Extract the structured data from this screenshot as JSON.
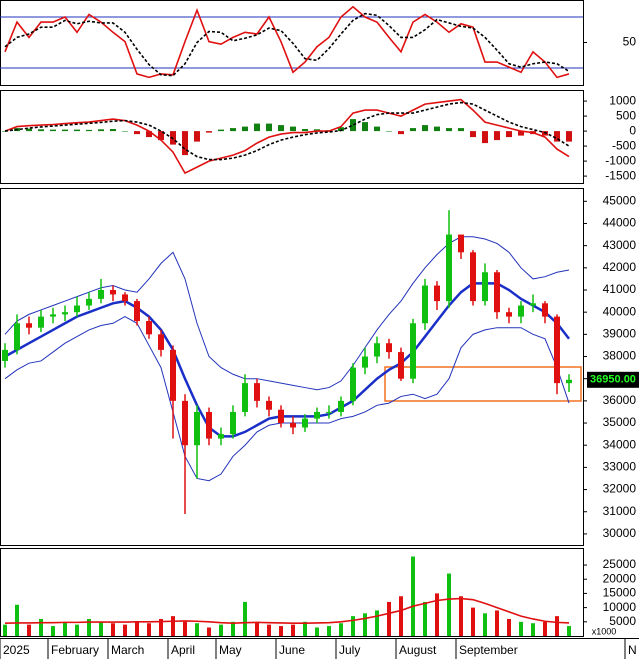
{
  "chart_data": [
    {
      "type": "line",
      "ylim": [
        0,
        100
      ],
      "yticks": [
        50
      ],
      "levels": [
        80,
        20
      ],
      "level_color": "#2233bb",
      "series": [
        {
          "name": "%K",
          "color": "#e01010",
          "values": [
            39,
            74,
            56,
            74,
            74,
            80,
            62,
            83,
            74,
            62,
            51,
            13,
            9,
            13,
            12,
            51,
            88,
            51,
            48,
            56,
            62,
            60,
            80,
            51,
            15,
            27,
            45,
            56,
            80,
            92,
            80,
            74,
            56,
            39,
            74,
            83,
            74,
            62,
            72,
            68,
            27,
            27,
            21,
            15,
            39,
            27,
            9,
            13
          ]
        },
        {
          "name": "%D",
          "color": "#000000",
          "dashed": true,
          "values": [
            45,
            56,
            60,
            68,
            68,
            76,
            72,
            75,
            73,
            73,
            62,
            42,
            24,
            12,
            11,
            25,
            50,
            63,
            62,
            52,
            55,
            59,
            67,
            64,
            49,
            31,
            29,
            43,
            60,
            76,
            84,
            82,
            70,
            56,
            56,
            65,
            77,
            73,
            69,
            67,
            56,
            41,
            25,
            21,
            25,
            27,
            25,
            16
          ]
        }
      ]
    },
    {
      "type": "macd",
      "ylim": [
        -1730,
        1370
      ],
      "yticks": [
        1000,
        500,
        0,
        -500,
        -1000,
        -1500
      ],
      "up_color": "#108010",
      "down_color": "#d01010",
      "histogram": [
        0,
        100,
        80,
        60,
        50,
        50,
        50,
        40,
        60,
        70,
        0,
        -100,
        -200,
        -300,
        -450,
        -800,
        -350,
        -50,
        50,
        100,
        150,
        250,
        250,
        200,
        150,
        70,
        60,
        30,
        130,
        400,
        300,
        150,
        0,
        -100,
        100,
        200,
        150,
        100,
        100,
        -200,
        -400,
        -300,
        -200,
        -150,
        -100,
        -150,
        -350,
        -350
      ],
      "series": [
        {
          "name": "MACD",
          "color": "#e01010",
          "values": [
            0,
            150,
            180,
            200,
            220,
            250,
            280,
            300,
            350,
            400,
            350,
            200,
            0,
            -300,
            -700,
            -1400,
            -1200,
            -1000,
            -900,
            -800,
            -650,
            -400,
            -200,
            -100,
            -50,
            -50,
            0,
            0,
            150,
            600,
            700,
            700,
            600,
            500,
            700,
            900,
            950,
            1000,
            1050,
            700,
            300,
            200,
            100,
            0,
            -50,
            -200,
            -600,
            -850
          ]
        },
        {
          "name": "Signal",
          "color": "#000000",
          "dashed": true,
          "values": [
            0,
            50,
            100,
            140,
            170,
            200,
            230,
            260,
            290,
            330,
            350,
            300,
            200,
            0,
            -250,
            -600,
            -850,
            -950,
            -950,
            -900,
            -800,
            -650,
            -450,
            -300,
            -200,
            -120,
            -60,
            -30,
            20,
            200,
            400,
            550,
            600,
            600,
            600,
            700,
            800,
            900,
            950,
            900,
            700,
            500,
            300,
            150,
            50,
            -50,
            -250,
            -500
          ]
        }
      ]
    },
    {
      "type": "candlestick",
      "ylim": [
        29500,
        45600
      ],
      "yticks": [
        45000,
        44000,
        43000,
        42000,
        41000,
        40000,
        39000,
        38000,
        37000,
        36000,
        35000,
        34000,
        33000,
        32000,
        31000,
        30000
      ],
      "up_color": "#10c010",
      "down_color": "#e01010",
      "last_price_label": "36950.00",
      "candles": {
        "open": [
          37800,
          38300,
          39500,
          39300,
          39800,
          39900,
          40000,
          40300,
          40600,
          41000,
          40800,
          40500,
          39600,
          39000,
          38300,
          36000,
          34000,
          35500,
          34300,
          34500,
          35500,
          36800,
          36000,
          35600,
          35000,
          34800,
          35200,
          35500,
          35500,
          36000,
          37500,
          38000,
          38600,
          38200,
          37000,
          39500,
          41200,
          40500,
          43500,
          42700,
          40500,
          41800,
          40000,
          39800,
          40300,
          40400,
          39800,
          36800
        ],
        "high": [
          38600,
          39900,
          39800,
          40100,
          40200,
          40300,
          40700,
          40900,
          41500,
          41200,
          40900,
          40600,
          39800,
          39200,
          38500,
          36300,
          35800,
          35700,
          34800,
          35800,
          37200,
          37000,
          36200,
          35800,
          35300,
          35400,
          35700,
          35800,
          36200,
          37700,
          38400,
          38900,
          38800,
          38400,
          39700,
          41500,
          41400,
          44600,
          43400,
          42800,
          42200,
          41900,
          40200,
          40500,
          40800,
          40500,
          39900,
          37200
        ],
        "low": [
          37500,
          38100,
          39000,
          39100,
          39500,
          39600,
          39800,
          40100,
          40400,
          40500,
          40300,
          39400,
          38800,
          38000,
          34300,
          30900,
          32500,
          34000,
          34000,
          34300,
          35300,
          35700,
          35300,
          34800,
          34500,
          34600,
          35000,
          35200,
          35300,
          35800,
          37200,
          37700,
          37900,
          36900,
          36800,
          39200,
          40100,
          40200,
          42400,
          40300,
          40300,
          39700,
          39500,
          39500,
          40000,
          39500,
          36300,
          36400
        ],
        "close": [
          38300,
          39500,
          39300,
          39800,
          39900,
          40000,
          40300,
          40600,
          41000,
          40800,
          40500,
          39600,
          39000,
          38300,
          36000,
          34000,
          35500,
          34300,
          34500,
          35500,
          36800,
          36000,
          35600,
          35000,
          34800,
          35200,
          35500,
          35500,
          36000,
          37500,
          38000,
          38600,
          38200,
          37000,
          39500,
          41200,
          40500,
          43500,
          42700,
          40500,
          41800,
          40000,
          39800,
          40300,
          40400,
          39800,
          36800,
          36950
        ]
      },
      "series": [
        {
          "name": "Upper",
          "color": "#2233bb",
          "width": 1,
          "values": [
            39000,
            39600,
            39900,
            40100,
            40300,
            40500,
            40700,
            40900,
            41100,
            41200,
            41000,
            40900,
            41500,
            42200,
            42700,
            41500,
            39500,
            38000,
            37500,
            37200,
            37000,
            37000,
            36900,
            36800,
            36700,
            36600,
            36500,
            36600,
            36900,
            37600,
            38400,
            39200,
            39900,
            40500,
            41300,
            42000,
            42600,
            43100,
            43400,
            43400,
            43300,
            43100,
            42700,
            42000,
            41500,
            41600,
            41800,
            41900
          ]
        },
        {
          "name": "MA",
          "color": "#1a2fc8",
          "width": 2.5,
          "values": [
            38000,
            38300,
            38600,
            38900,
            39200,
            39500,
            39800,
            40000,
            40200,
            40400,
            40500,
            40200,
            39800,
            39200,
            38300,
            37000,
            35800,
            34800,
            34400,
            34400,
            34600,
            34900,
            35200,
            35300,
            35300,
            35300,
            35300,
            35400,
            35700,
            36000,
            36500,
            37000,
            37400,
            37700,
            38200,
            38900,
            39600,
            40300,
            40900,
            41300,
            41300,
            41300,
            41000,
            40600,
            40300,
            40000,
            39500,
            38800
          ]
        },
        {
          "name": "Lower",
          "color": "#2233bb",
          "width": 1,
          "values": [
            37000,
            37400,
            37700,
            37800,
            38200,
            38600,
            38900,
            39200,
            39400,
            39500,
            39800,
            39500,
            38500,
            37500,
            35500,
            33500,
            32500,
            32400,
            32700,
            33500,
            34000,
            34600,
            34900,
            35000,
            35000,
            35000,
            35000,
            35000,
            35200,
            35300,
            35500,
            35800,
            35900,
            36200,
            36300,
            36100,
            36300,
            37000,
            38400,
            39000,
            39200,
            39300,
            39300,
            39300,
            39000,
            38800,
            37500,
            35900
          ]
        }
      ]
    },
    {
      "type": "bar",
      "ylim": [
        0,
        31000
      ],
      "yticks": [
        25000,
        20000,
        15000,
        10000,
        5000
      ],
      "unit_label": "x1000",
      "values": [
        4000,
        11000,
        4000,
        6000,
        3500,
        5000,
        4000,
        6000,
        5000,
        4500,
        4000,
        5000,
        4500,
        6000,
        7000,
        5000,
        4500,
        3000,
        4000,
        5000,
        12000,
        5000,
        4000,
        3500,
        4000,
        5000,
        3000,
        3500,
        4500,
        7000,
        8000,
        9000,
        12000,
        14000,
        28000,
        12000,
        15000,
        22000,
        14000,
        10000,
        8000,
        9000,
        6000,
        5000,
        4500,
        5000,
        7000,
        3500
      ],
      "series": [
        {
          "name": "Volume MA",
          "color": "#e01010",
          "values": [
            4500,
            4600,
            4600,
            4700,
            4700,
            4800,
            4800,
            4900,
            4900,
            4900,
            4900,
            5000,
            5000,
            5100,
            5200,
            5300,
            5200,
            5000,
            4700,
            4500,
            4700,
            4800,
            4700,
            4600,
            4500,
            4500,
            4600,
            4700,
            5000,
            5500,
            6200,
            7000,
            8000,
            9000,
            10500,
            11500,
            12500,
            13000,
            13200,
            12800,
            11500,
            10000,
            8500,
            7000,
            6000,
            5200,
            4800,
            4600
          ]
        }
      ],
      "categories": [
        "2025",
        null,
        null,
        null,
        "February",
        null,
        null,
        null,
        null,
        "March",
        null,
        null,
        null,
        null,
        "April",
        null,
        null,
        null,
        "May",
        null,
        null,
        null,
        null,
        "June",
        null,
        null,
        null,
        null,
        "July",
        null,
        null,
        null,
        null,
        "August",
        null,
        null,
        null,
        null,
        "September",
        null,
        null,
        null,
        null,
        null,
        null,
        null,
        null,
        null
      ],
      "next_month_label": "N"
    }
  ]
}
